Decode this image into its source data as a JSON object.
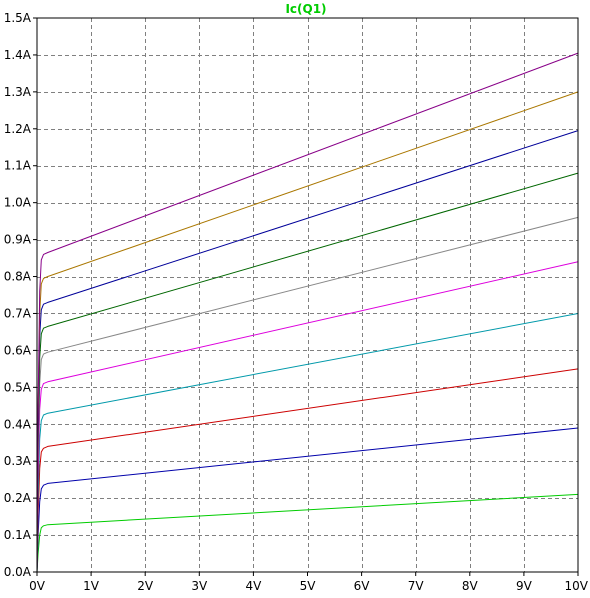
{
  "colors": {
    "background": "#ffffff",
    "frame": "#000000",
    "grid": "#808080",
    "title": "#00cc00"
  },
  "chart_data": {
    "type": "line",
    "title": "Ic(Q1)",
    "xlabel": "",
    "ylabel": "",
    "xlim": [
      0,
      10
    ],
    "ylim": [
      0,
      1.5
    ],
    "grid": true,
    "legend": "none",
    "x_ticks": [
      0,
      1,
      2,
      3,
      4,
      5,
      6,
      7,
      8,
      9,
      10
    ],
    "x_tick_labels": [
      "0V",
      "1V",
      "2V",
      "3V",
      "4V",
      "5V",
      "6V",
      "7V",
      "8V",
      "9V",
      "10V"
    ],
    "y_ticks": [
      0,
      0.1,
      0.2,
      0.3,
      0.4,
      0.5,
      0.6,
      0.7,
      0.8,
      0.9,
      1.0,
      1.1,
      1.2,
      1.3,
      1.4,
      1.5
    ],
    "y_tick_labels": [
      "0.0A",
      "0.1A",
      "0.2A",
      "0.3A",
      "0.4A",
      "0.5A",
      "0.6A",
      "0.7A",
      "0.8A",
      "0.9A",
      "1.0A",
      "1.1A",
      "1.2A",
      "1.3A",
      "1.4A",
      "1.5A"
    ],
    "series": [
      {
        "color": "#00cc00",
        "x": [
          0,
          0.02,
          0.05,
          0.08,
          0.12,
          0.2,
          10
        ],
        "y": [
          0,
          0.05,
          0.1,
          0.12,
          0.125,
          0.128,
          0.21
        ]
      },
      {
        "color": "#0000aa",
        "x": [
          0,
          0.02,
          0.05,
          0.08,
          0.12,
          0.2,
          10
        ],
        "y": [
          0,
          0.1,
          0.19,
          0.225,
          0.235,
          0.24,
          0.39
        ]
      },
      {
        "color": "#cc0000",
        "x": [
          0,
          0.02,
          0.05,
          0.08,
          0.12,
          0.2,
          10
        ],
        "y": [
          0,
          0.15,
          0.28,
          0.325,
          0.335,
          0.34,
          0.55
        ]
      },
      {
        "color": "#0099aa",
        "x": [
          0,
          0.02,
          0.05,
          0.08,
          0.12,
          0.2,
          10
        ],
        "y": [
          0,
          0.2,
          0.36,
          0.41,
          0.425,
          0.43,
          0.7
        ]
      },
      {
        "color": "#dd00dd",
        "x": [
          0,
          0.02,
          0.05,
          0.08,
          0.12,
          0.2,
          10
        ],
        "y": [
          0,
          0.25,
          0.44,
          0.495,
          0.51,
          0.515,
          0.84
        ]
      },
      {
        "color": "#888888",
        "x": [
          0,
          0.02,
          0.05,
          0.08,
          0.12,
          0.2,
          10
        ],
        "y": [
          0,
          0.3,
          0.51,
          0.575,
          0.59,
          0.595,
          0.96
        ]
      },
      {
        "color": "#006600",
        "x": [
          0,
          0.02,
          0.05,
          0.08,
          0.12,
          0.2,
          10
        ],
        "y": [
          0,
          0.34,
          0.58,
          0.645,
          0.66,
          0.665,
          1.08
        ]
      },
      {
        "color": "#000099",
        "x": [
          0,
          0.02,
          0.05,
          0.08,
          0.12,
          0.2,
          10
        ],
        "y": [
          0,
          0.38,
          0.64,
          0.71,
          0.725,
          0.73,
          1.195
        ]
      },
      {
        "color": "#aa7700",
        "x": [
          0,
          0.02,
          0.05,
          0.08,
          0.12,
          0.2,
          10
        ],
        "y": [
          0,
          0.42,
          0.7,
          0.78,
          0.795,
          0.8,
          1.3
        ]
      },
      {
        "color": "#880088",
        "x": [
          0,
          0.02,
          0.05,
          0.08,
          0.12,
          0.2,
          10
        ],
        "y": [
          0,
          0.45,
          0.76,
          0.845,
          0.86,
          0.865,
          1.405
        ]
      }
    ]
  }
}
